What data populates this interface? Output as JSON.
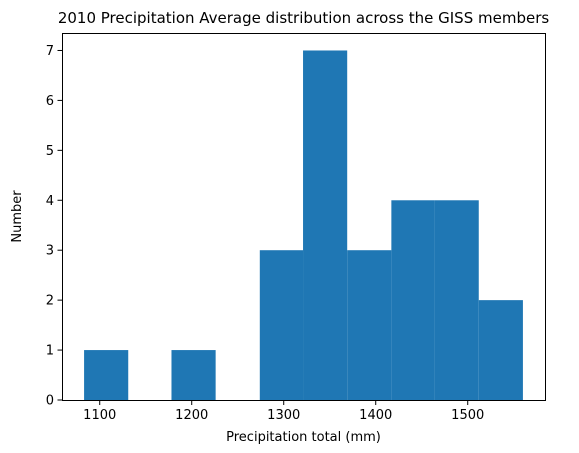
{
  "chart_data": {
    "type": "bar",
    "title": "2010 Precipitation Average distribution across the GISS members",
    "xlabel": "Precipitation total (mm)",
    "ylabel": "Number",
    "bin_edges": [
      1083,
      1131,
      1178,
      1226,
      1274,
      1321,
      1369,
      1417,
      1464,
      1512,
      1560
    ],
    "values": [
      1,
      0,
      1,
      0,
      3,
      7,
      3,
      4,
      4,
      2
    ],
    "xlim": [
      1059,
      1584
    ],
    "ylim": [
      0,
      7.35
    ],
    "xticks": [
      1100,
      1200,
      1300,
      1400,
      1500
    ],
    "yticks": [
      0,
      1,
      2,
      3,
      4,
      5,
      6,
      7
    ],
    "bar_color": "#1f77b4",
    "grid": false,
    "legend": "none"
  }
}
